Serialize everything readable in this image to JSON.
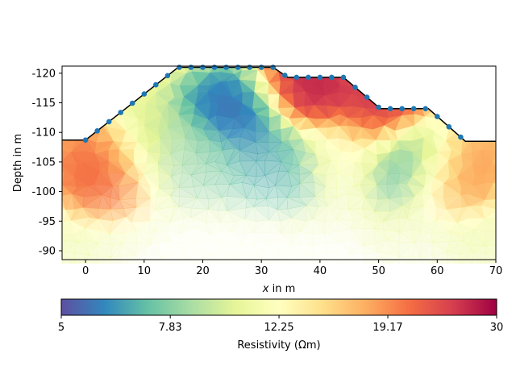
{
  "chart_data": {
    "type": "heatmap",
    "subtype": "resistivity-tomography-mesh",
    "xlabel_var": "x",
    "xlabel_unit": " in m",
    "ylabel": "Depth in m",
    "xlim": [
      -4,
      70
    ],
    "ylim": [
      -121.2,
      -88.5
    ],
    "x_ticks": [
      0,
      10,
      20,
      30,
      40,
      50,
      60,
      70
    ],
    "x_tick_labels": [
      "0",
      "10",
      "20",
      "30",
      "40",
      "50",
      "60",
      "70"
    ],
    "y_ticks": [
      -120,
      -115,
      -110,
      -105,
      -100,
      -95,
      -90
    ],
    "y_tick_labels": [
      "-120",
      "-115",
      "-110",
      "-105",
      "-100",
      "-95",
      "-90"
    ],
    "surface_profile": [
      [
        -4,
        -108.7
      ],
      [
        0,
        -108.7
      ],
      [
        15.8,
        -121
      ],
      [
        32,
        -121
      ],
      [
        34.5,
        -119.3
      ],
      [
        44,
        -119.3
      ],
      [
        50.3,
        -114
      ],
      [
        58.5,
        -114
      ],
      [
        64.8,
        -108.5
      ],
      [
        70,
        -108.5
      ]
    ],
    "electrodes_x": [
      0,
      2,
      4,
      6,
      8,
      10,
      12,
      14,
      16,
      18,
      20,
      22,
      24,
      26,
      28,
      30,
      32,
      34,
      36,
      38,
      40,
      42,
      44,
      46,
      48,
      50,
      52,
      54,
      56,
      58,
      60,
      62,
      64
    ],
    "model_anomalies": [
      {
        "x": 26,
        "y": -113,
        "rho": 5.4
      },
      {
        "x": 32,
        "y": -105,
        "rho": 6.5
      },
      {
        "x": 18,
        "y": -106,
        "rho": 7.5
      },
      {
        "x": 38,
        "y": -117,
        "rho": 28
      },
      {
        "x": 50,
        "y": -113,
        "rho": 27
      },
      {
        "x": 56,
        "y": -106,
        "rho": 6
      },
      {
        "x": 12,
        "y": -107,
        "rho": 10
      },
      {
        "x": 4,
        "y": -104,
        "rho": 22
      },
      {
        "x": 44,
        "y": -107,
        "rho": 12
      },
      {
        "x": 62,
        "y": -105,
        "rho": 20
      }
    ],
    "colorbar": {
      "label": "Resistivity (Ωm)",
      "ticks": [
        5,
        7.83,
        12.25,
        19.17,
        30
      ],
      "tick_labels": [
        "5",
        "7.83",
        "12.25",
        "19.17",
        "30"
      ],
      "range": [
        5,
        30
      ],
      "scale": "log",
      "colormap": "Spectral_r"
    },
    "grid": false,
    "legend": "none"
  }
}
